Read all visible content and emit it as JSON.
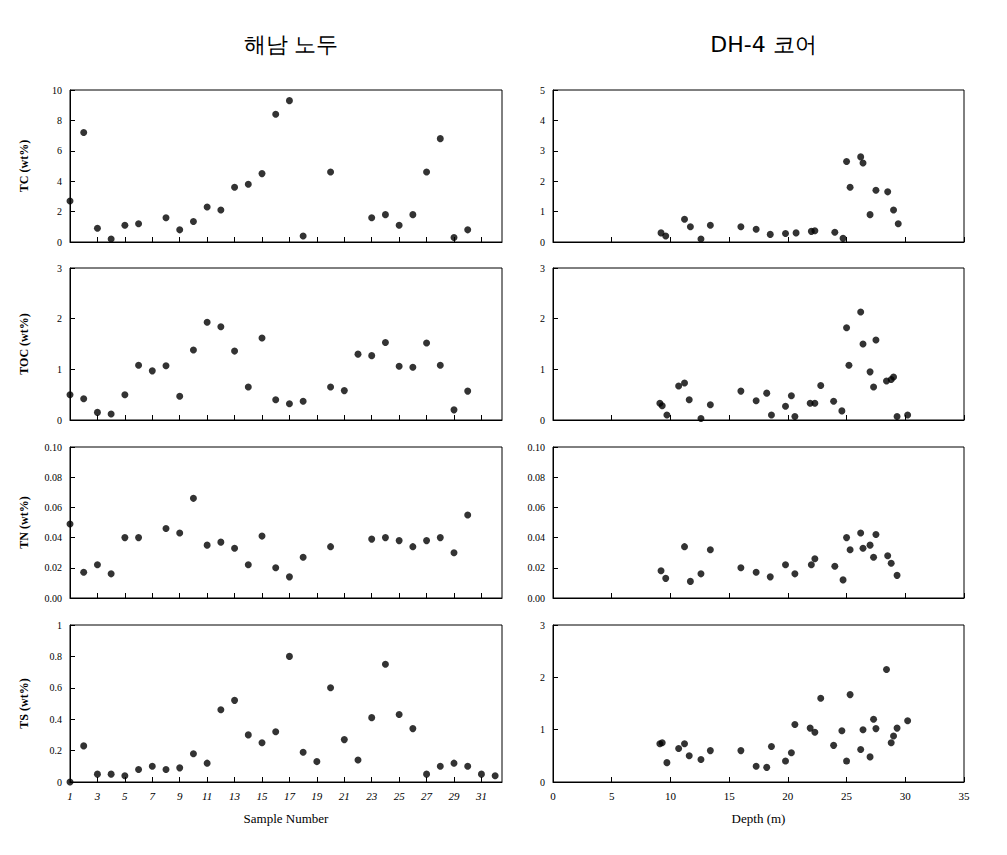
{
  "chart_data": [
    {
      "type": "scatter",
      "title": "해남 노두",
      "ylabel": "TC (wt%)",
      "tick_labels": "y",
      "grid": false,
      "marker": "circle",
      "color": "#000000",
      "xlim": [
        1,
        32.5
      ],
      "xticks": [
        1,
        3,
        5,
        7,
        9,
        11,
        13,
        15,
        17,
        19,
        21,
        23,
        25,
        27,
        29,
        31
      ],
      "ylim": [
        0,
        10
      ],
      "yticks": [
        0,
        2,
        4,
        6,
        8,
        10
      ],
      "x": [
        1,
        2,
        3,
        4,
        5,
        6,
        8,
        9,
        10,
        11,
        12,
        13,
        14,
        15,
        16,
        17,
        18,
        20,
        23,
        24,
        25,
        26,
        27,
        28,
        29,
        30
      ],
      "values": [
        2.7,
        7.2,
        0.9,
        0.2,
        1.1,
        1.2,
        1.6,
        0.8,
        1.35,
        2.3,
        2.1,
        3.6,
        3.8,
        4.5,
        8.4,
        9.3,
        0.4,
        4.6,
        1.6,
        1.8,
        1.1,
        1.8,
        4.6,
        6.8,
        0.3,
        0.8
      ]
    },
    {
      "type": "scatter",
      "title": "DH-4 코어",
      "tick_labels": "y",
      "grid": false,
      "marker": "circle",
      "color": "#000000",
      "xlim": [
        0,
        35
      ],
      "xticks": [
        0,
        5,
        10,
        15,
        20,
        25,
        30,
        35
      ],
      "ylim": [
        0,
        5
      ],
      "yticks": [
        0,
        1,
        2,
        3,
        4,
        5
      ],
      "x": [
        9.2,
        9.6,
        11.2,
        11.7,
        12.6,
        13.4,
        16,
        17.3,
        18.5,
        19.8,
        20.7,
        22,
        22.3,
        24,
        24.7,
        25,
        25.3,
        26.2,
        26.4,
        27,
        27.5,
        28.5,
        29,
        29.4
      ],
      "values": [
        0.3,
        0.2,
        0.75,
        0.5,
        0.1,
        0.55,
        0.5,
        0.42,
        0.25,
        0.28,
        0.3,
        0.35,
        0.37,
        0.32,
        0.12,
        2.65,
        1.8,
        2.8,
        2.6,
        0.9,
        1.7,
        1.65,
        1.05,
        0.6
      ]
    },
    {
      "type": "scatter",
      "ylabel": "TOC (wt%)",
      "tick_labels": "y",
      "grid": false,
      "marker": "circle",
      "color": "#000000",
      "xlim": [
        1,
        32.5
      ],
      "xticks": [
        1,
        3,
        5,
        7,
        9,
        11,
        13,
        15,
        17,
        19,
        21,
        23,
        25,
        27,
        29,
        31
      ],
      "ylim": [
        0,
        3
      ],
      "yticks": [
        0,
        1,
        2,
        3
      ],
      "x": [
        1,
        2,
        3,
        4,
        5,
        6,
        7,
        8,
        9,
        10,
        11,
        12,
        13,
        14,
        15,
        16,
        17,
        18,
        20,
        21,
        22,
        23,
        24,
        25,
        26,
        27,
        28,
        29,
        30
      ],
      "values": [
        0.5,
        0.42,
        0.15,
        0.12,
        0.5,
        1.08,
        0.97,
        1.07,
        0.47,
        1.38,
        1.93,
        1.84,
        1.36,
        0.65,
        1.62,
        0.4,
        0.32,
        0.37,
        0.65,
        0.58,
        1.3,
        1.27,
        1.53,
        1.06,
        1.04,
        1.52,
        1.08,
        0.2,
        0.57
      ]
    },
    {
      "type": "scatter",
      "tick_labels": "y",
      "grid": false,
      "marker": "circle",
      "color": "#000000",
      "xlim": [
        0,
        35
      ],
      "xticks": [
        0,
        5,
        10,
        15,
        20,
        25,
        30,
        35
      ],
      "ylim": [
        0,
        3
      ],
      "yticks": [
        0,
        1,
        2,
        3
      ],
      "x": [
        9.1,
        9.3,
        9.7,
        10.7,
        11.2,
        11.6,
        12.6,
        13.4,
        16,
        17.3,
        18.2,
        18.6,
        19.8,
        20.3,
        20.6,
        21.9,
        22.3,
        22.8,
        23.9,
        24.6,
        25,
        25.2,
        26.2,
        26.4,
        27,
        27.3,
        27.5,
        28.4,
        28.8,
        29,
        29.3,
        30.2
      ],
      "values": [
        0.33,
        0.28,
        0.1,
        0.67,
        0.73,
        0.4,
        0.03,
        0.3,
        0.57,
        0.38,
        0.53,
        0.1,
        0.27,
        0.48,
        0.07,
        0.33,
        0.33,
        0.68,
        0.37,
        0.18,
        1.82,
        1.08,
        2.13,
        1.5,
        0.95,
        0.65,
        1.58,
        0.77,
        0.8,
        0.85,
        0.07,
        0.1
      ]
    },
    {
      "type": "scatter",
      "ylabel": "TN (wt%)",
      "tick_labels": "y",
      "grid": false,
      "marker": "circle",
      "color": "#000000",
      "xlim": [
        1,
        32.5
      ],
      "xticks": [
        1,
        3,
        5,
        7,
        9,
        11,
        13,
        15,
        17,
        19,
        21,
        23,
        25,
        27,
        29,
        31
      ],
      "ylim": [
        0,
        0.1
      ],
      "yticks": [
        {
          "value": 0,
          "label": "0.00"
        },
        0.02,
        0.04,
        0.06,
        0.08,
        {
          "value": 0.1,
          "label": "0.10"
        }
      ],
      "x": [
        1,
        2,
        3,
        4,
        5,
        6,
        8,
        9,
        10,
        11,
        12,
        13,
        14,
        15,
        16,
        17,
        18,
        20,
        23,
        24,
        25,
        26,
        27,
        28,
        29,
        30
      ],
      "values": [
        0.049,
        0.017,
        0.022,
        0.016,
        0.04,
        0.04,
        0.046,
        0.043,
        0.066,
        0.035,
        0.037,
        0.033,
        0.022,
        0.041,
        0.02,
        0.014,
        0.027,
        0.034,
        0.039,
        0.04,
        0.038,
        0.034,
        0.038,
        0.04,
        0.03,
        0.055
      ]
    },
    {
      "type": "scatter",
      "tick_labels": "y",
      "grid": false,
      "marker": "circle",
      "color": "#000000",
      "xlim": [
        0,
        35
      ],
      "xticks": [
        0,
        5,
        10,
        15,
        20,
        25,
        30,
        35
      ],
      "ylim": [
        0,
        0.1
      ],
      "yticks": [
        {
          "value": 0,
          "label": "0.00"
        },
        0.02,
        0.04,
        0.06,
        0.08,
        {
          "value": 0.1,
          "label": "0.10"
        }
      ],
      "x": [
        9.2,
        9.6,
        11.2,
        11.7,
        12.6,
        13.4,
        16,
        17.3,
        18.5,
        19.8,
        20.6,
        22,
        22.3,
        24,
        24.7,
        25,
        25.3,
        26.2,
        26.4,
        27,
        27.3,
        27.5,
        28.5,
        28.8,
        29.3
      ],
      "values": [
        0.018,
        0.013,
        0.034,
        0.011,
        0.016,
        0.032,
        0.02,
        0.017,
        0.014,
        0.022,
        0.016,
        0.022,
        0.026,
        0.021,
        0.012,
        0.04,
        0.032,
        0.043,
        0.033,
        0.035,
        0.027,
        0.042,
        0.028,
        0.023,
        0.015
      ]
    },
    {
      "type": "scatter",
      "ylabel": "TS (wt%)",
      "xlabel": "Sample Number",
      "grid": false,
      "marker": "circle",
      "color": "#000000",
      "xlim": [
        1,
        32.5
      ],
      "xticks": [
        1,
        3,
        5,
        7,
        9,
        11,
        13,
        15,
        17,
        19,
        21,
        23,
        25,
        27,
        29,
        31
      ],
      "ylim": [
        0,
        1
      ],
      "yticks": [
        0,
        0.2,
        0.4,
        0.6,
        0.8,
        1
      ],
      "x": [
        1,
        2,
        3,
        4,
        5,
        6,
        7,
        8,
        9,
        10,
        11,
        12,
        13,
        14,
        15,
        16,
        17,
        18,
        19,
        20,
        21,
        22,
        23,
        24,
        25,
        26,
        27,
        28,
        29,
        30,
        31,
        32
      ],
      "values": [
        0.0,
        0.23,
        0.05,
        0.05,
        0.04,
        0.08,
        0.1,
        0.08,
        0.09,
        0.18,
        0.12,
        0.46,
        0.52,
        0.3,
        0.25,
        0.32,
        0.8,
        0.19,
        0.13,
        0.6,
        0.27,
        0.14,
        0.41,
        0.75,
        0.43,
        0.34,
        0.05,
        0.1,
        0.12,
        0.1,
        0.05,
        0.04
      ]
    },
    {
      "type": "scatter",
      "xlabel": "Depth (m)",
      "grid": false,
      "marker": "circle",
      "color": "#000000",
      "xlim": [
        0,
        35
      ],
      "xticks": [
        0,
        5,
        10,
        15,
        20,
        25,
        30,
        35
      ],
      "ylim": [
        0,
        3
      ],
      "yticks": [
        0,
        1,
        2,
        3
      ],
      "x": [
        9.1,
        9.3,
        9.7,
        10.7,
        11.2,
        11.6,
        12.6,
        13.4,
        16,
        17.3,
        18.2,
        18.6,
        19.8,
        20.3,
        20.6,
        21.9,
        22.3,
        22.8,
        23.9,
        24.6,
        25,
        25.3,
        26.2,
        26.4,
        27,
        27.3,
        27.5,
        28.4,
        28.8,
        29,
        29.3,
        30.2
      ],
      "values": [
        0.73,
        0.75,
        0.37,
        0.64,
        0.73,
        0.5,
        0.43,
        0.6,
        0.6,
        0.3,
        0.28,
        0.68,
        0.4,
        0.56,
        1.1,
        1.03,
        0.95,
        1.6,
        0.7,
        0.98,
        0.4,
        1.67,
        0.62,
        1.0,
        0.48,
        1.2,
        1.02,
        2.15,
        0.75,
        0.88,
        1.03,
        1.17
      ]
    }
  ]
}
